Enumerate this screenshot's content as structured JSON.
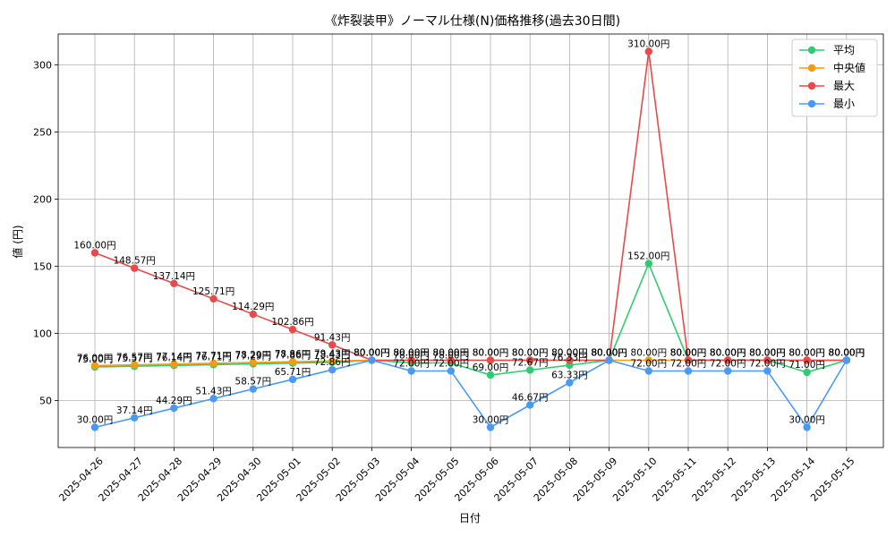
{
  "chart_data": {
    "type": "line",
    "title": "《炸裂装甲》ノーマル仕様(N)価格推移(過去30日間)",
    "xlabel": "日付",
    "ylabel": "値 (円)",
    "ylim": [
      15,
      323
    ],
    "yticks": [
      50,
      100,
      150,
      200,
      250,
      300
    ],
    "grid": true,
    "legend_position": "top-right",
    "categories": [
      "2025-04-26",
      "2025-04-27",
      "2025-04-28",
      "2025-04-29",
      "2025-04-30",
      "2025-05-01",
      "2025-05-02",
      "2025-05-03",
      "2025-05-04",
      "2025-05-05",
      "2025-05-06",
      "2025-05-07",
      "2025-05-08",
      "2025-05-09",
      "2025-05-10",
      "2025-05-11",
      "2025-05-12",
      "2025-05-13",
      "2025-05-14",
      "2025-05-15"
    ],
    "series": [
      {
        "name": "平均",
        "color": "#2ecc71",
        "values": [
          75.0,
          75.57,
          76.14,
          76.71,
          77.29,
          77.86,
          78.43,
          80.0,
          78.0,
          78.0,
          69.0,
          72.67,
          76.33,
          80.0,
          152.0,
          80.0,
          80.0,
          80.0,
          71.0,
          80.0
        ]
      },
      {
        "name": "中央値",
        "color": "#f39c12",
        "values": [
          76.0,
          76.57,
          77.14,
          77.71,
          78.29,
          78.86,
          79.43,
          80.0,
          80.0,
          80.0,
          80.0,
          80.0,
          80.0,
          80.0,
          80.0,
          80.0,
          80.0,
          80.0,
          80.0,
          80.0
        ]
      },
      {
        "name": "最大",
        "color": "#e84a4a",
        "values": [
          160.0,
          148.57,
          137.14,
          125.71,
          114.29,
          102.86,
          91.43,
          80.0,
          80.0,
          80.0,
          80.0,
          80.0,
          80.0,
          80.0,
          310.0,
          80.0,
          80.0,
          80.0,
          80.0,
          80.0
        ]
      },
      {
        "name": "最小",
        "color": "#4a9af5",
        "values": [
          30.0,
          37.14,
          44.29,
          51.43,
          58.57,
          65.71,
          72.86,
          80.0,
          72.0,
          72.0,
          30.0,
          46.67,
          63.33,
          80.0,
          72.0,
          72.0,
          72.0,
          72.0,
          30.0,
          80.0
        ]
      }
    ],
    "value_suffix": "円"
  }
}
